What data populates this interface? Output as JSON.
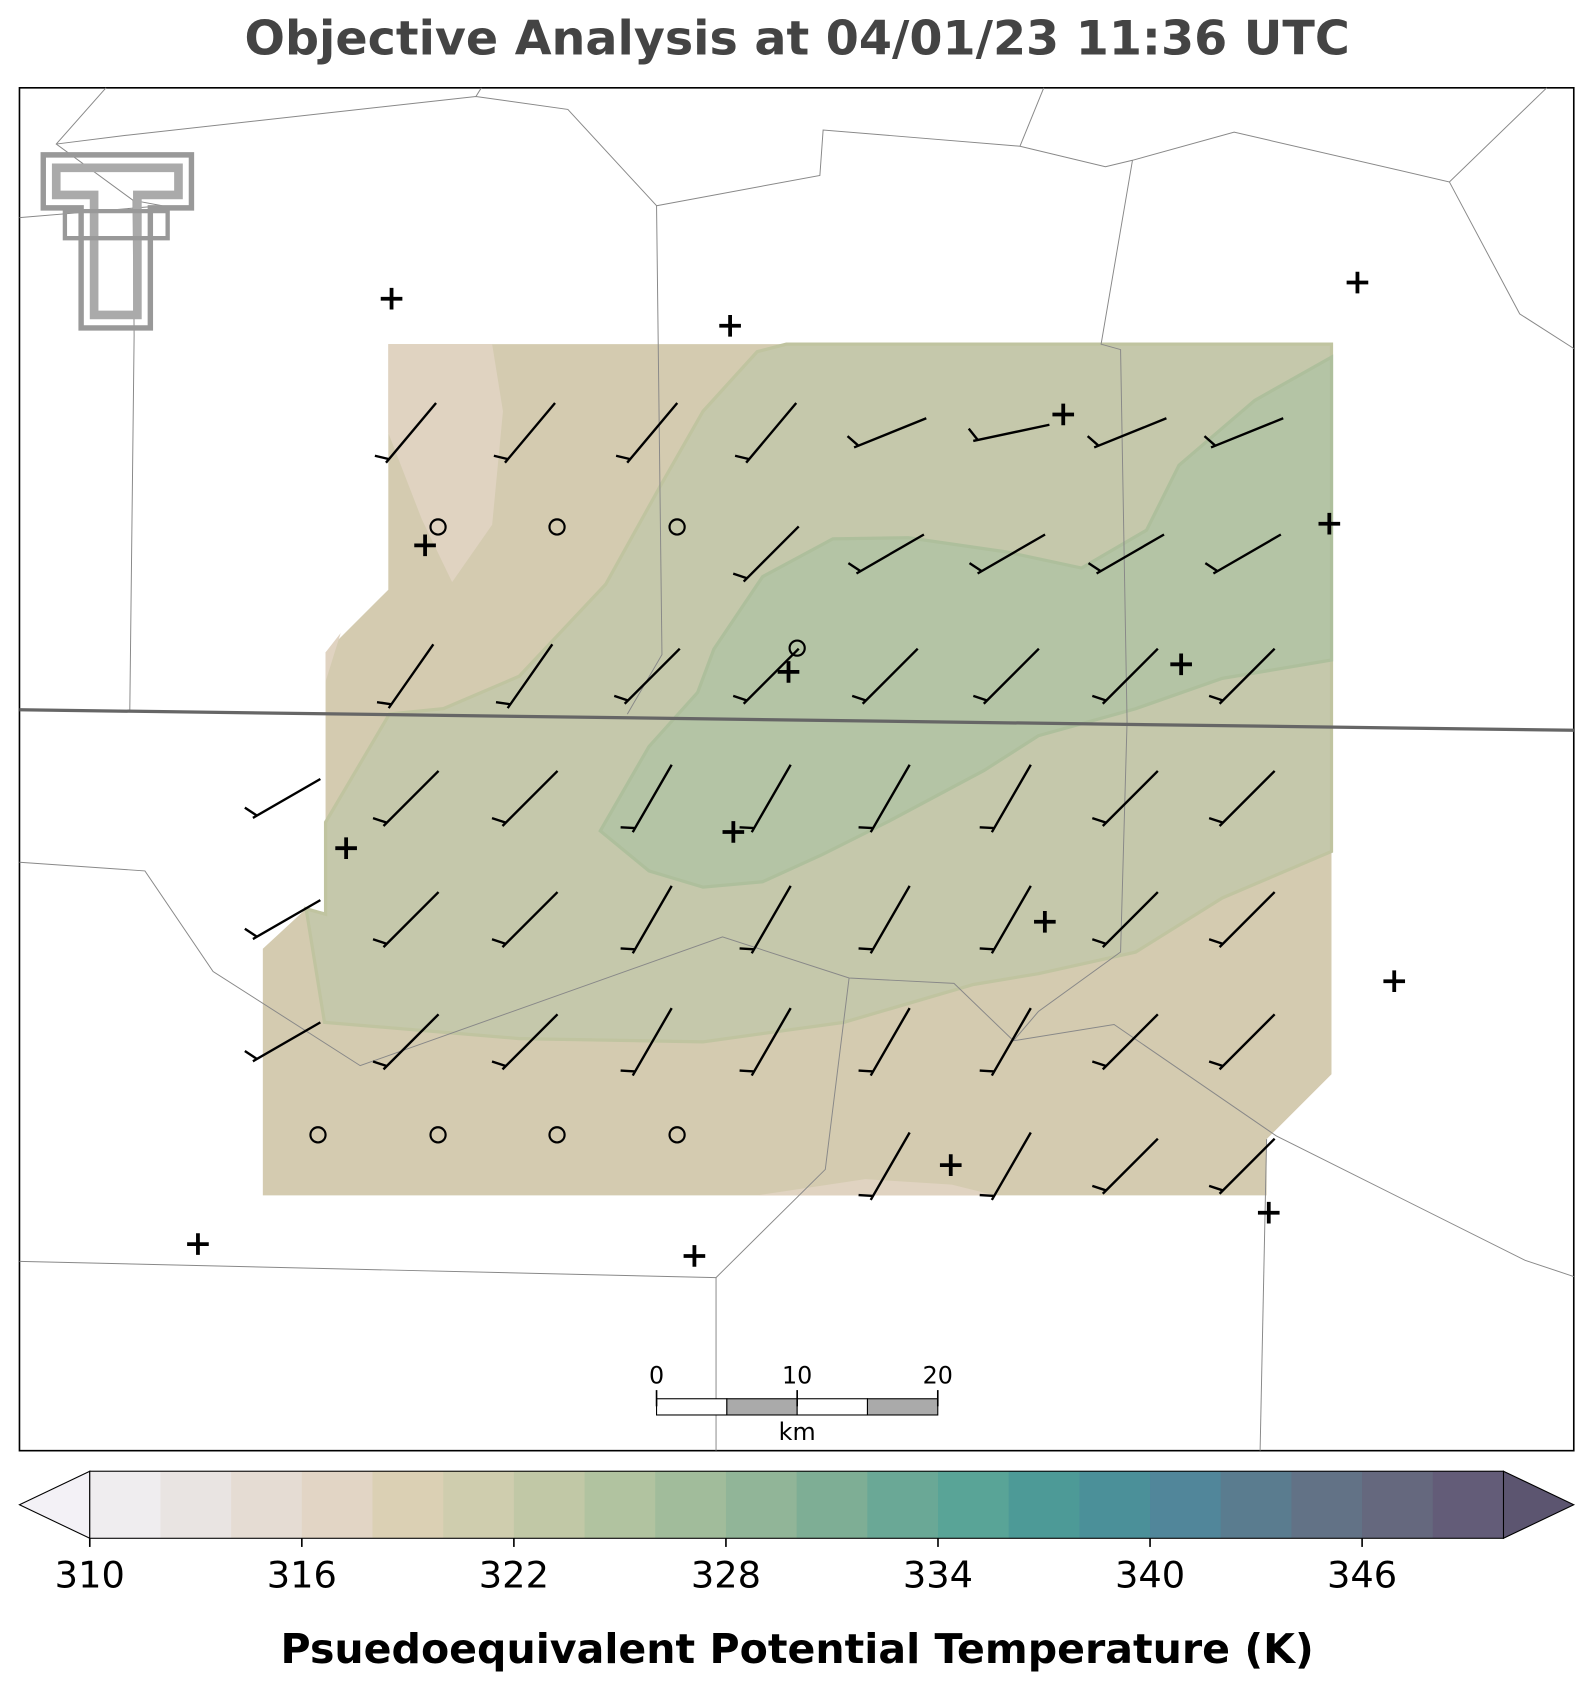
{
  "title": "Objective Analysis at 04/01/23 11:36 UTC",
  "colorbar": {
    "label": "Psuedoequivalent Potential Temperature (K)",
    "range": [
      310,
      350
    ],
    "ticks": [
      310,
      316,
      322,
      328,
      334,
      340,
      346
    ],
    "colors": [
      "#efedef",
      "#e9e4e2",
      "#e5dcd3",
      "#e2d5c5",
      "#dbd0b4",
      "#cfcdae",
      "#c1c8a6",
      "#b1c3a0",
      "#a1bc9b",
      "#91b598",
      "#7eae95",
      "#6aa896",
      "#59a497",
      "#4d9a97",
      "#4b9099",
      "#51869a",
      "#5a7c8f",
      "#627286",
      "#65687e",
      "#635c78"
    ],
    "under_color": "#f3f1f6",
    "over_color": "#5c5570"
  },
  "scale_bar": {
    "ticks": [
      0,
      10,
      20
    ],
    "unit": "km"
  }
}
